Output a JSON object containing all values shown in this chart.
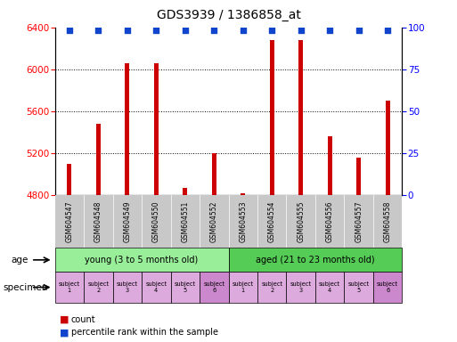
{
  "title": "GDS3939 / 1386858_at",
  "categories": [
    "GSM604547",
    "GSM604548",
    "GSM604549",
    "GSM604550",
    "GSM604551",
    "GSM604552",
    "GSM604553",
    "GSM604554",
    "GSM604555",
    "GSM604556",
    "GSM604557",
    "GSM604558"
  ],
  "counts": [
    5100,
    5480,
    6060,
    6060,
    4870,
    5200,
    4820,
    6280,
    6280,
    5360,
    5160,
    5700
  ],
  "percentile_values": [
    98,
    98,
    98,
    98,
    98,
    98,
    98,
    98,
    98,
    98,
    98,
    98
  ],
  "bar_color": "#cc0000",
  "dot_color": "#1144cc",
  "ylim_left": [
    4800,
    6400
  ],
  "ylim_right": [
    0,
    100
  ],
  "yticks_left": [
    4800,
    5200,
    5600,
    6000,
    6400
  ],
  "yticks_right": [
    0,
    25,
    50,
    75,
    100
  ],
  "age_groups": [
    {
      "label": "young (3 to 5 months old)",
      "start": 0,
      "end": 6,
      "color": "#99ee99"
    },
    {
      "label": "aged (21 to 23 months old)",
      "start": 6,
      "end": 12,
      "color": "#55cc55"
    }
  ],
  "specimen_colors_light": "#ddaadd",
  "specimen_colors_dark": "#cc88cc",
  "specimen_dark_indices": [
    5,
    11
  ],
  "specimen_labels": [
    "subject\n1",
    "subject\n2",
    "subject\n3",
    "subject\n4",
    "subject\n5",
    "subject\n6",
    "subject\n1",
    "subject\n2",
    "subject\n3",
    "subject\n4",
    "subject\n5",
    "subject\n6"
  ],
  "bg_color": "#ffffff",
  "tick_area_color": "#c8c8c8",
  "bar_width": 0.15
}
